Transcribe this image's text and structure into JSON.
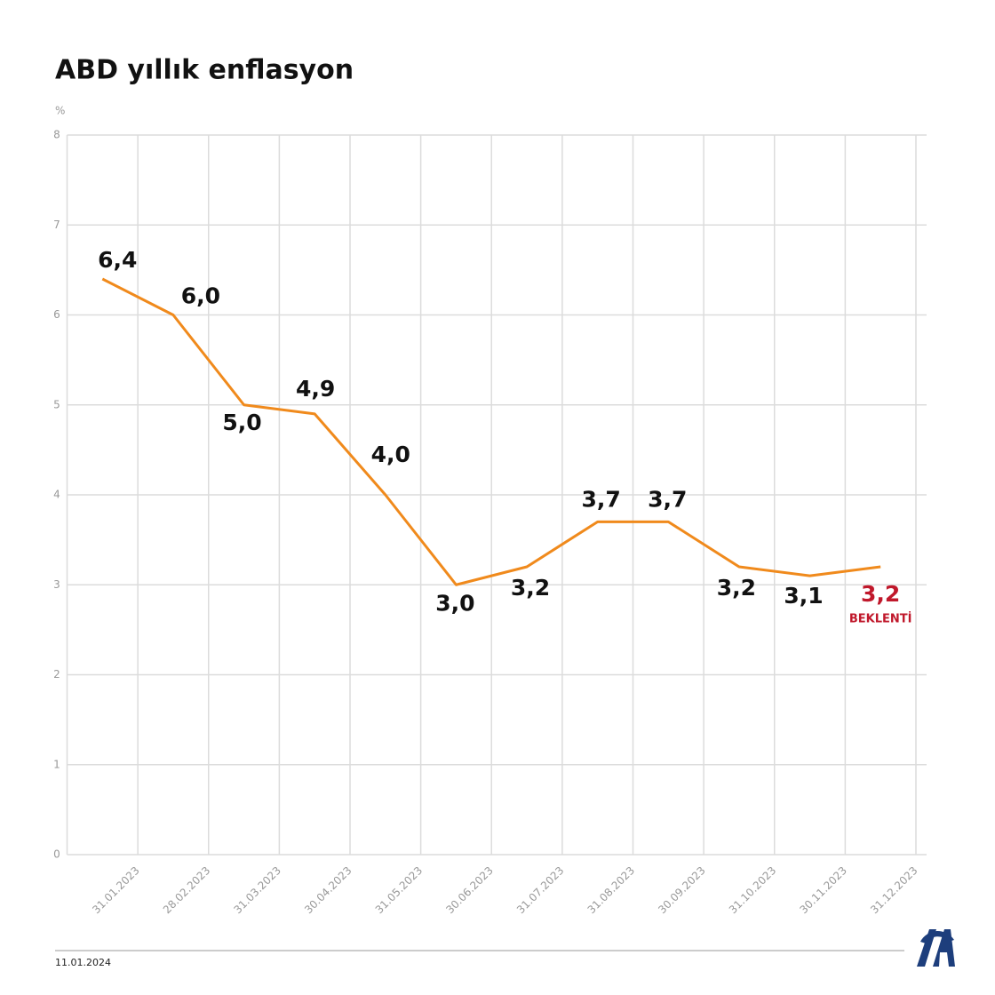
{
  "chart_data": {
    "type": "line",
    "title": "ABD yıllık enflasyon",
    "y_unit": "%",
    "categories": [
      "31.01.2023",
      "28.02.2023",
      "31.03.2023",
      "30.04.2023",
      "31.05.2023",
      "30.06.2023",
      "31.07.2023",
      "31.08.2023",
      "30.09.2023",
      "31.10.2023",
      "30.11.2023",
      "31.12.2023"
    ],
    "values": [
      6.4,
      6.0,
      5.0,
      4.9,
      4.0,
      3.0,
      3.2,
      3.7,
      3.7,
      3.2,
      3.1,
      3.2
    ],
    "value_labels": [
      "6,4",
      "6,0",
      "5,0",
      "4,9",
      "4,0",
      "3,0",
      "3,2",
      "3,7",
      "3,7",
      "3,2",
      "3,1",
      "3,2"
    ],
    "color": "#f08a1c",
    "annotation": "BEKLENTİ",
    "annotation_color": "#c0182b",
    "ylim": [
      0,
      8
    ],
    "yticks": [
      0,
      1,
      2,
      3,
      4,
      5,
      6,
      7,
      8
    ],
    "grid": true
  },
  "footer": {
    "date": "11.01.2024"
  }
}
